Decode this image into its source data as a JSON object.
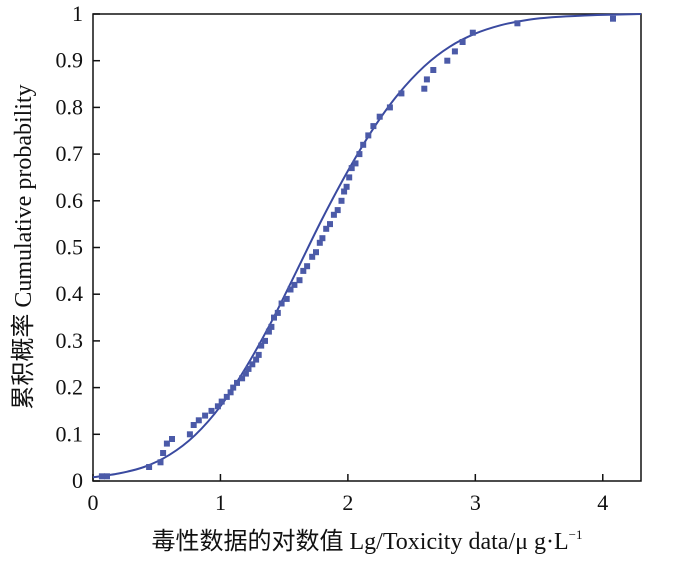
{
  "chart_data": {
    "type": "scatter",
    "xlabel": "毒性数据的对数值 Lg/Toxicity data/μ g·L",
    "xlabel_sup": "−1",
    "ylabel": "累积概率 Cumulative probability",
    "xlim": [
      0,
      4.3
    ],
    "ylim": [
      0,
      1
    ],
    "x_ticks": [
      "0",
      "1",
      "2",
      "3",
      "4"
    ],
    "y_ticks": [
      "0",
      "0.1",
      "0.2",
      "0.3",
      "0.4",
      "0.5",
      "0.6",
      "0.7",
      "0.8",
      "0.9",
      "1"
    ],
    "grid": false,
    "colors": {
      "points": "#4b5aa8",
      "curve": "#3a4aa0",
      "axis": "#111111"
    },
    "series": [
      {
        "kind": "points",
        "x": [
          0.07,
          0.11,
          0.44,
          0.53,
          0.55,
          0.58,
          0.62,
          0.76,
          0.79,
          0.83,
          0.88,
          0.93,
          0.98,
          1.01,
          1.05,
          1.08,
          1.1,
          1.13,
          1.17,
          1.2,
          1.22,
          1.25,
          1.28,
          1.3,
          1.32,
          1.35,
          1.38,
          1.4,
          1.42,
          1.45,
          1.48,
          1.52,
          1.55,
          1.58,
          1.62,
          1.65,
          1.68,
          1.72,
          1.75,
          1.78,
          1.8,
          1.83,
          1.86,
          1.89,
          1.92,
          1.95,
          1.97,
          1.99,
          2.01,
          2.03,
          2.06,
          2.09,
          2.12,
          2.16,
          2.2,
          2.25,
          2.33,
          2.42,
          2.6,
          2.62,
          2.67,
          2.78,
          2.84,
          2.9,
          2.98,
          3.33,
          4.08
        ],
        "y": [
          0.01,
          0.01,
          0.03,
          0.04,
          0.06,
          0.08,
          0.09,
          0.1,
          0.12,
          0.13,
          0.14,
          0.15,
          0.16,
          0.17,
          0.18,
          0.19,
          0.2,
          0.21,
          0.22,
          0.23,
          0.24,
          0.25,
          0.26,
          0.27,
          0.29,
          0.3,
          0.32,
          0.33,
          0.35,
          0.36,
          0.38,
          0.39,
          0.41,
          0.42,
          0.43,
          0.45,
          0.46,
          0.48,
          0.49,
          0.51,
          0.52,
          0.54,
          0.55,
          0.57,
          0.58,
          0.6,
          0.62,
          0.63,
          0.65,
          0.67,
          0.68,
          0.7,
          0.72,
          0.74,
          0.76,
          0.78,
          0.8,
          0.83,
          0.84,
          0.86,
          0.88,
          0.9,
          0.92,
          0.94,
          0.96,
          0.98,
          0.99
        ]
      },
      {
        "kind": "curve",
        "x": [
          0,
          0.2,
          0.4,
          0.6,
          0.8,
          1.0,
          1.2,
          1.4,
          1.6,
          1.8,
          2.0,
          2.2,
          2.4,
          2.6,
          2.8,
          3.0,
          3.2,
          3.4,
          3.6,
          3.8,
          4.0,
          4.3
        ],
        "y": [
          0.008,
          0.016,
          0.03,
          0.056,
          0.098,
          0.16,
          0.243,
          0.341,
          0.451,
          0.562,
          0.664,
          0.755,
          0.83,
          0.888,
          0.93,
          0.958,
          0.976,
          0.987,
          0.993,
          0.996,
          0.998,
          1.0
        ]
      }
    ]
  }
}
